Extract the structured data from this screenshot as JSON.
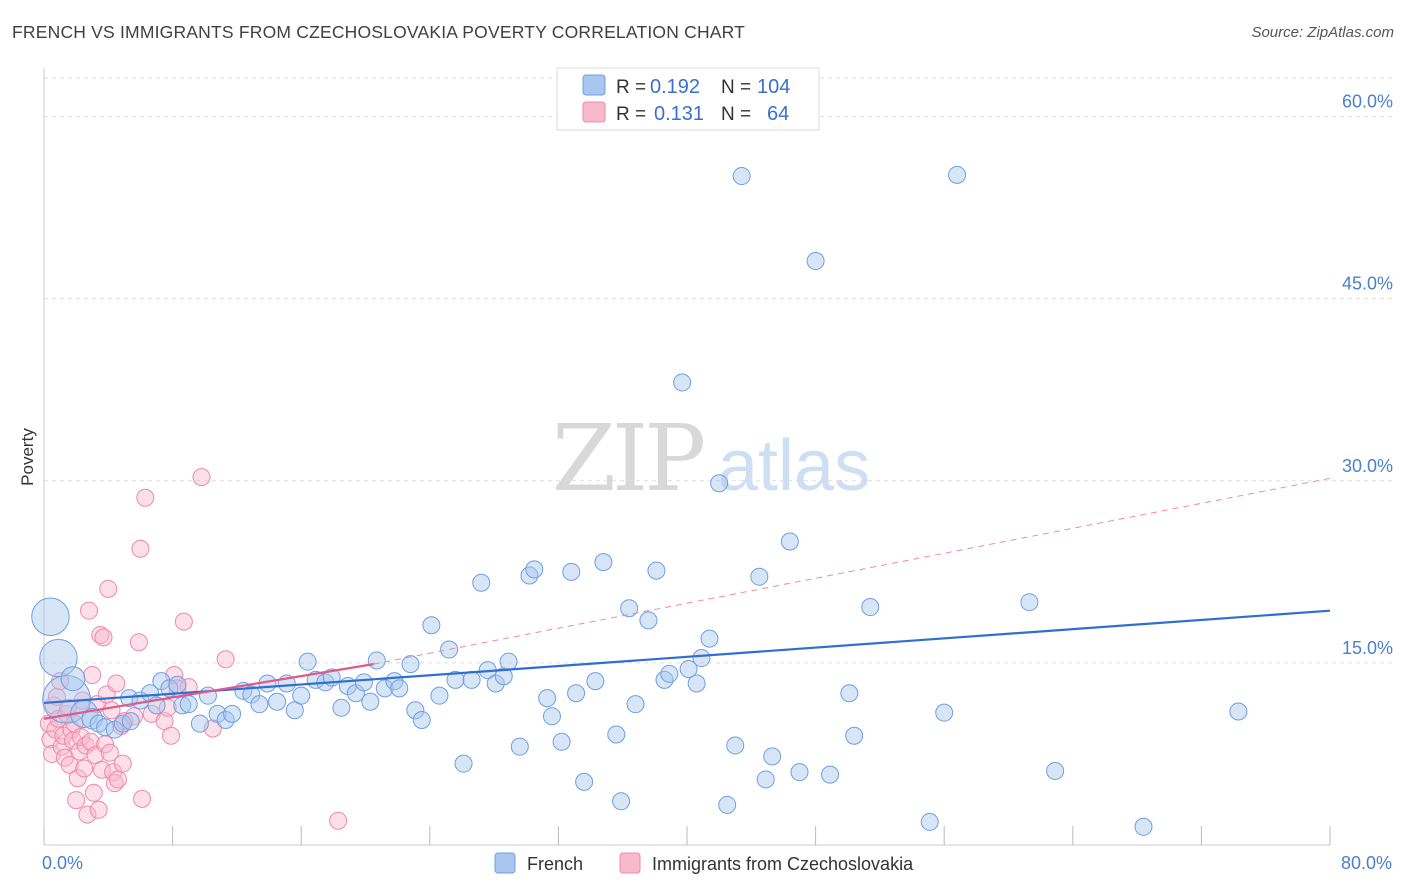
{
  "header": {
    "title": "FRENCH VS IMMIGRANTS FROM CZECHOSLOVAKIA POVERTY CORRELATION CHART",
    "source": "Source: ZipAtlas.com"
  },
  "watermark": {
    "part1": "ZIP",
    "part2": "atlas"
  },
  "legend": {
    "french": {
      "r_label": "R =",
      "r_value": "0.192",
      "n_label": "N =",
      "n_value": "104"
    },
    "czech": {
      "r_label": "R =",
      "r_value": "0.131",
      "n_label": "N =",
      "n_value": "64"
    }
  },
  "bottom_legend": {
    "french": "French",
    "czech": "Immigrants from Czechoslovakia"
  },
  "colors": {
    "french_fill": "#a9c6ee",
    "french_stroke": "#6e9fe0",
    "french_line": "#2f6fd0",
    "czech_fill": "#f8b9cb",
    "czech_stroke": "#ee8aa8",
    "czech_line": "#e05a88",
    "tick_text": "#4a7fd0",
    "grid": "#dddddd"
  },
  "chart_data": {
    "type": "scatter",
    "title": "FRENCH VS IMMIGRANTS FROM CZECHOSLOVAKIA POVERTY CORRELATION CHART",
    "xlabel": "",
    "ylabel": "Poverty",
    "xlim": [
      0,
      80
    ],
    "ylim": [
      0,
      64
    ],
    "x_tick_labels": [
      {
        "value": 0,
        "label": "0.0%"
      },
      {
        "value": 80,
        "label": "80.0%"
      }
    ],
    "y_tick_labels": [
      {
        "value": 15,
        "label": "15.0%"
      },
      {
        "value": 30,
        "label": "30.0%"
      },
      {
        "value": 45,
        "label": "45.0%"
      },
      {
        "value": 60,
        "label": "60.0%"
      }
    ],
    "x_minor_ticks": [
      0,
      8,
      16,
      24,
      32,
      40,
      48,
      56,
      64,
      72,
      80
    ],
    "grid": true,
    "legend_position": "top-center",
    "series": [
      {
        "name": "French",
        "color": "#a9c6ee",
        "stroke": "#6e9fe0",
        "trend": {
          "x": [
            0,
            80
          ],
          "y": [
            11.7,
            19.3
          ]
        },
        "points": [
          [
            0.4,
            18.8,
            2.2
          ],
          [
            0.9,
            15.4,
            2.2
          ],
          [
            1.4,
            12.0,
            2.8
          ],
          [
            1.8,
            13.7,
            1.4
          ],
          [
            2.5,
            10.8,
            1.6
          ],
          [
            3.0,
            10.4,
            1.2
          ],
          [
            3.4,
            10.0,
            1.0
          ],
          [
            3.8,
            9.7,
            1.0
          ],
          [
            4.4,
            9.5,
            1.0
          ],
          [
            4.9,
            10.0,
            1.0
          ],
          [
            5.4,
            10.2,
            1.0
          ],
          [
            5.3,
            12.1,
            1.0
          ],
          [
            6.0,
            11.9,
            1.0
          ],
          [
            6.6,
            12.5,
            1.0
          ],
          [
            7.0,
            11.5,
            1.0
          ],
          [
            7.3,
            13.5,
            1.0
          ],
          [
            7.8,
            12.9,
            1.0
          ],
          [
            8.3,
            13.2,
            1.0
          ],
          [
            8.6,
            11.5,
            1.0
          ],
          [
            9.0,
            11.6,
            1.0
          ],
          [
            9.7,
            10.0,
            1.0
          ],
          [
            10.2,
            12.3,
            1.0
          ],
          [
            10.8,
            10.8,
            1.0
          ],
          [
            11.3,
            10.3,
            1.0
          ],
          [
            11.7,
            10.8,
            1.0
          ],
          [
            12.4,
            12.7,
            1.0
          ],
          [
            12.9,
            12.4,
            1.0
          ],
          [
            13.4,
            11.6,
            1.0
          ],
          [
            13.9,
            13.3,
            1.0
          ],
          [
            14.5,
            11.8,
            1.0
          ],
          [
            15.1,
            13.3,
            1.0
          ],
          [
            15.6,
            11.1,
            1.0
          ],
          [
            16.0,
            12.3,
            1.0
          ],
          [
            16.4,
            15.1,
            1.0
          ],
          [
            16.9,
            13.6,
            1.0
          ],
          [
            17.5,
            13.4,
            1.0
          ],
          [
            17.9,
            13.8,
            1.0
          ],
          [
            18.5,
            11.3,
            1.0
          ],
          [
            18.9,
            13.1,
            1.0
          ],
          [
            19.4,
            12.5,
            1.0
          ],
          [
            19.9,
            13.4,
            1.0
          ],
          [
            20.3,
            11.8,
            1.0
          ],
          [
            20.7,
            15.2,
            1.0
          ],
          [
            21.2,
            12.9,
            1.0
          ],
          [
            21.8,
            13.5,
            1.0
          ],
          [
            22.1,
            12.9,
            1.0
          ],
          [
            22.8,
            14.9,
            1.0
          ],
          [
            23.1,
            11.1,
            1.0
          ],
          [
            23.5,
            10.3,
            1.0
          ],
          [
            24.1,
            18.1,
            1.0
          ],
          [
            24.6,
            12.3,
            1.0
          ],
          [
            25.2,
            16.1,
            1.0
          ],
          [
            25.6,
            13.6,
            1.0
          ],
          [
            26.1,
            6.7,
            1.0
          ],
          [
            26.6,
            13.6,
            1.0
          ],
          [
            27.2,
            21.6,
            1.0
          ],
          [
            27.6,
            14.4,
            1.0
          ],
          [
            28.1,
            13.3,
            1.0
          ],
          [
            28.6,
            13.9,
            1.0
          ],
          [
            28.9,
            15.1,
            1.0
          ],
          [
            29.6,
            8.1,
            1.0
          ],
          [
            30.2,
            22.2,
            1.0
          ],
          [
            30.5,
            22.7,
            1.0
          ],
          [
            31.3,
            12.1,
            1.0
          ],
          [
            31.6,
            10.6,
            1.0
          ],
          [
            32.2,
            8.5,
            1.0
          ],
          [
            32.8,
            22.5,
            1.0
          ],
          [
            33.1,
            12.5,
            1.0
          ],
          [
            33.6,
            5.2,
            1.0
          ],
          [
            34.3,
            13.5,
            1.0
          ],
          [
            34.8,
            23.3,
            1.0
          ],
          [
            35.6,
            9.1,
            1.0
          ],
          [
            35.9,
            3.6,
            1.0
          ],
          [
            36.4,
            19.5,
            1.0
          ],
          [
            36.8,
            11.6,
            1.0
          ],
          [
            37.6,
            18.5,
            1.0
          ],
          [
            38.1,
            22.6,
            1.0
          ],
          [
            38.6,
            13.6,
            1.0
          ],
          [
            38.9,
            14.1,
            1.0
          ],
          [
            39.7,
            38.1,
            1.0
          ],
          [
            40.1,
            14.5,
            1.0
          ],
          [
            40.6,
            13.3,
            1.0
          ],
          [
            40.9,
            15.4,
            1.0
          ],
          [
            41.4,
            17.0,
            1.0
          ],
          [
            42.0,
            29.8,
            1.0
          ],
          [
            42.5,
            3.3,
            1.0
          ],
          [
            43.0,
            8.2,
            1.0
          ],
          [
            43.4,
            55.1,
            1.0
          ],
          [
            44.5,
            22.1,
            1.0
          ],
          [
            44.9,
            5.4,
            1.0
          ],
          [
            45.3,
            7.3,
            1.0
          ],
          [
            46.4,
            25.0,
            1.0
          ],
          [
            47.0,
            6.0,
            1.0
          ],
          [
            48.0,
            48.1,
            1.0
          ],
          [
            48.9,
            5.8,
            1.0
          ],
          [
            50.1,
            12.5,
            1.0
          ],
          [
            50.4,
            9.0,
            1.0
          ],
          [
            51.4,
            19.6,
            1.0
          ],
          [
            55.1,
            1.9,
            1.0
          ],
          [
            56.0,
            10.9,
            1.0
          ],
          [
            56.8,
            55.2,
            1.0
          ],
          [
            61.3,
            20.0,
            1.0
          ],
          [
            62.9,
            6.1,
            1.0
          ],
          [
            68.4,
            1.5,
            1.0
          ],
          [
            74.3,
            11.0,
            1.0
          ]
        ]
      },
      {
        "name": "Immigrants from Czechoslovakia",
        "color": "#f8b9cb",
        "stroke": "#ee8aa8",
        "trend": {
          "x": [
            0,
            20.5
          ],
          "y": [
            10.4,
            14.9
          ]
        },
        "trend_extended": {
          "x": [
            20.5,
            80
          ],
          "y": [
            14.9,
            30.2
          ]
        },
        "points": [
          [
            0.3,
            10.0,
            1.0
          ],
          [
            0.4,
            8.7,
            1.0
          ],
          [
            0.5,
            7.5,
            1.0
          ],
          [
            0.6,
            11.5,
            1.0
          ],
          [
            0.7,
            9.5,
            1.0
          ],
          [
            0.8,
            12.2,
            1.0
          ],
          [
            0.9,
            10.4,
            1.0
          ],
          [
            1.0,
            13.5,
            1.0
          ],
          [
            1.1,
            8.1,
            1.0
          ],
          [
            1.2,
            9.0,
            1.0
          ],
          [
            1.3,
            7.2,
            1.0
          ],
          [
            1.4,
            10.8,
            1.0
          ],
          [
            1.5,
            11.3,
            1.0
          ],
          [
            1.6,
            6.6,
            1.0
          ],
          [
            1.7,
            9.5,
            1.0
          ],
          [
            1.8,
            8.6,
            1.0
          ],
          [
            1.9,
            10.0,
            1.0
          ],
          [
            2.0,
            3.7,
            1.0
          ],
          [
            2.1,
            5.5,
            1.0
          ],
          [
            2.2,
            7.7,
            1.0
          ],
          [
            2.3,
            8.9,
            1.0
          ],
          [
            2.4,
            11.9,
            1.0
          ],
          [
            2.5,
            6.3,
            1.0
          ],
          [
            2.6,
            8.2,
            1.0
          ],
          [
            2.7,
            2.5,
            1.0
          ],
          [
            2.8,
            19.3,
            1.0
          ],
          [
            2.9,
            8.5,
            1.0
          ],
          [
            3.0,
            14.0,
            1.0
          ],
          [
            3.1,
            4.3,
            1.0
          ],
          [
            3.2,
            7.4,
            1.0
          ],
          [
            3.3,
            11.6,
            1.0
          ],
          [
            3.4,
            2.9,
            1.0
          ],
          [
            3.5,
            17.3,
            1.0
          ],
          [
            3.6,
            6.2,
            1.0
          ],
          [
            3.7,
            17.1,
            1.0
          ],
          [
            3.8,
            8.3,
            1.0
          ],
          [
            3.9,
            12.4,
            1.0
          ],
          [
            4.0,
            21.1,
            1.0
          ],
          [
            4.1,
            7.6,
            1.0
          ],
          [
            4.2,
            11.1,
            1.0
          ],
          [
            4.3,
            6.0,
            1.0
          ],
          [
            4.4,
            5.1,
            1.0
          ],
          [
            4.5,
            13.3,
            1.0
          ],
          [
            4.6,
            5.4,
            1.0
          ],
          [
            4.8,
            9.8,
            1.0
          ],
          [
            4.9,
            6.7,
            1.0
          ],
          [
            5.0,
            10.2,
            1.0
          ],
          [
            5.6,
            10.6,
            1.0
          ],
          [
            5.9,
            16.7,
            1.0
          ],
          [
            6.0,
            24.4,
            1.0
          ],
          [
            6.1,
            3.8,
            1.0
          ],
          [
            6.3,
            28.6,
            1.0
          ],
          [
            6.7,
            10.8,
            1.0
          ],
          [
            7.5,
            10.2,
            1.0
          ],
          [
            7.7,
            11.3,
            1.0
          ],
          [
            7.9,
            9.0,
            1.0
          ],
          [
            8.1,
            14.0,
            1.0
          ],
          [
            8.3,
            12.9,
            1.0
          ],
          [
            8.7,
            18.4,
            1.0
          ],
          [
            9.0,
            13.0,
            1.0
          ],
          [
            9.8,
            30.3,
            1.0
          ],
          [
            10.5,
            9.6,
            1.0
          ],
          [
            11.3,
            15.3,
            1.0
          ],
          [
            18.3,
            2.0,
            1.0
          ]
        ]
      }
    ]
  }
}
